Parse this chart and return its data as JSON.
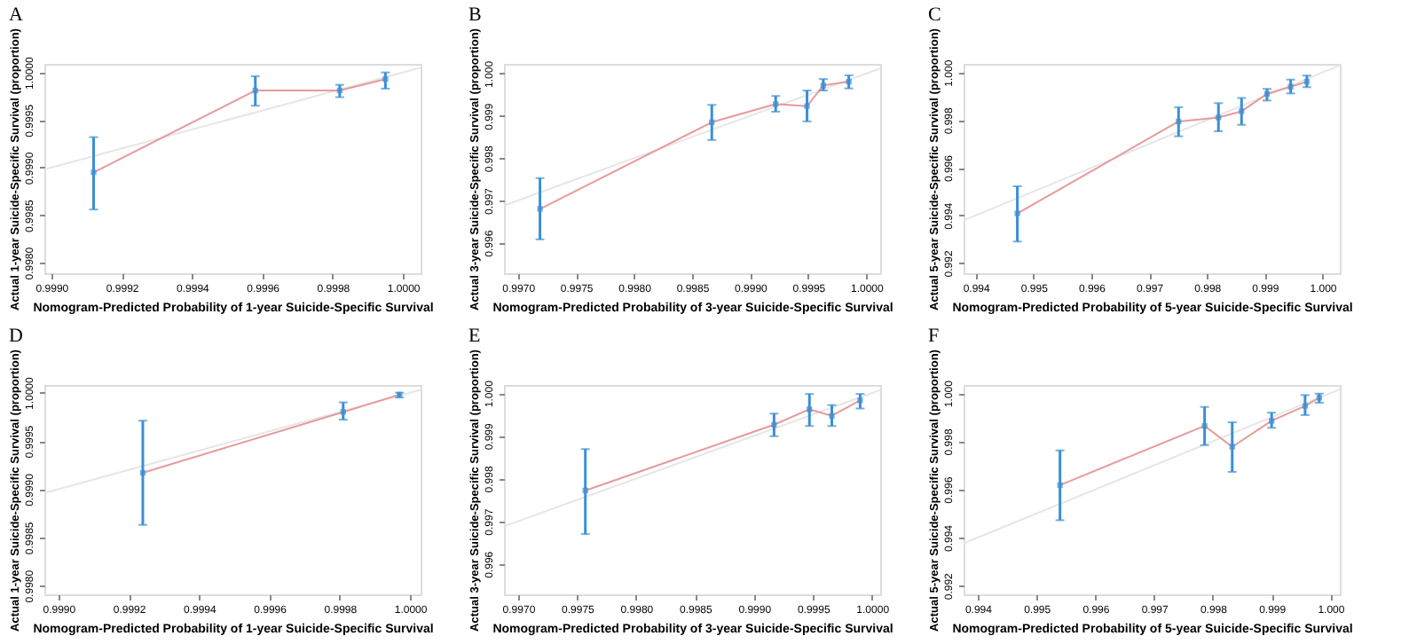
{
  "chart_data": [
    {
      "type": "line",
      "title": "A",
      "xlabel": "Nomogram-Predicted Probability of 1-year Suicide-Specific Survival",
      "ylabel": "Actual 1-year Suicide-Specific Survival (proportion)",
      "xlim": [
        0.99898,
        1.00005
      ],
      "ylim": [
        0.99789,
        1.00009
      ],
      "xticks": [
        {
          "value": 0.999,
          "label": "0.9990"
        },
        0.9992,
        0.9994,
        0.9996,
        0.9998,
        {
          "value": 1.0,
          "label": "1.0000"
        }
      ],
      "yticks": [
        {
          "value": 0.998,
          "label": "0.9980"
        },
        0.9985,
        {
          "value": 0.999,
          "label": "0.9990"
        },
        0.9995,
        {
          "value": 1.0,
          "label": "1.0000"
        }
      ],
      "grid": false,
      "series": [
        {
          "color": "#e6e6e6",
          "x": [
            0.99898,
            1.00005
          ],
          "values": [
            0.99898,
            1.00005
          ]
        },
        {
          "color": "#e89a9a",
          "x": [
            0.99912,
            0.99958,
            0.99982,
            0.99995
          ],
          "values": [
            0.99895,
            0.99981,
            0.99981,
            0.99993
          ]
        },
        {
          "type": "scatter",
          "color": "#3c8fd4",
          "marker": "square",
          "x": [
            0.99912,
            0.99958,
            0.99982,
            0.99995
          ],
          "values": [
            0.99895,
            0.99981,
            0.99981,
            0.99993
          ],
          "errors": [
            [
              0.99856,
              0.99932
            ],
            [
              0.99965,
              0.99996
            ],
            [
              0.99974,
              0.99987
            ],
            [
              0.99983,
              1.0
            ]
          ]
        }
      ]
    },
    {
      "type": "line",
      "title": "B",
      "xlabel": "Nomogram-Predicted Probability of 3-year Suicide-Specific Survival",
      "ylabel": "Actual 3-year Suicide-Specific Survival (proportion)",
      "xlim": [
        0.99688,
        1.00012
      ],
      "ylim": [
        0.99528,
        1.00023
      ],
      "xticks": [
        {
          "value": 0.997,
          "label": "0.9970"
        },
        0.9975,
        {
          "value": 0.998,
          "label": "0.9980"
        },
        0.9985,
        {
          "value": 0.999,
          "label": "0.9990"
        },
        0.9995,
        {
          "value": 1.0,
          "label": "1.0000"
        }
      ],
      "yticks": [
        0.996,
        0.997,
        0.998,
        0.999,
        {
          "value": 1.0,
          "label": "1.000"
        }
      ],
      "grid": false,
      "series": [
        {
          "color": "#e6e6e6",
          "x": [
            0.99688,
            1.00012
          ],
          "values": [
            0.99688,
            1.00012
          ]
        },
        {
          "color": "#e89a9a",
          "x": [
            0.99719,
            0.99867,
            0.99922,
            0.99949,
            0.99963,
            0.99985
          ],
          "values": [
            0.9968,
            0.99885,
            0.99928,
            0.99923,
            0.99972,
            0.99981
          ]
        },
        {
          "type": "scatter",
          "color": "#3c8fd4",
          "marker": "square",
          "x": [
            0.99719,
            0.99867,
            0.99922,
            0.99949,
            0.99963,
            0.99985
          ],
          "values": [
            0.9968,
            0.99885,
            0.99928,
            0.99923,
            0.99972,
            0.99981
          ],
          "errors": [
            [
              0.99608,
              0.99753
            ],
            [
              0.99843,
              0.99926
            ],
            [
              0.9991,
              0.99947
            ],
            [
              0.99887,
              0.9996
            ],
            [
              0.9996,
              0.99987
            ],
            [
              0.99965,
              0.99996
            ]
          ]
        }
      ]
    },
    {
      "type": "line",
      "title": "C",
      "xlabel": "Nomogram-Predicted Probability of 5-year Suicide-Specific Survival",
      "ylabel": "Actual 5-year Suicide-Specific Survival (proportion)",
      "xlim": [
        0.99379,
        1.0003
      ],
      "ylim": [
        0.99157,
        1.00036
      ],
      "xticks": [
        0.994,
        0.995,
        0.996,
        0.997,
        0.998,
        0.999,
        {
          "value": 1.0,
          "label": "1.000"
        }
      ],
      "yticks": [
        0.992,
        0.994,
        0.996,
        0.998,
        {
          "value": 1.0,
          "label": "1.000"
        }
      ],
      "grid": false,
      "series": [
        {
          "color": "#e6e6e6",
          "x": [
            0.99379,
            1.0003
          ],
          "values": [
            0.99379,
            1.0003
          ]
        },
        {
          "color": "#e89a9a",
          "x": [
            0.99472,
            0.99751,
            0.9982,
            0.9986,
            0.99904,
            0.99945,
            0.99973
          ],
          "values": [
            0.99408,
            0.99794,
            0.99811,
            0.99837,
            0.9991,
            0.9994,
            0.99961
          ]
        },
        {
          "type": "scatter",
          "color": "#3c8fd4",
          "marker": "square",
          "x": [
            0.99472,
            0.99751,
            0.9982,
            0.9986,
            0.99904,
            0.99945,
            0.99973
          ],
          "values": [
            0.99408,
            0.99794,
            0.99811,
            0.99837,
            0.9991,
            0.9994,
            0.99961
          ],
          "errors": [
            [
              0.9929,
              0.99522
            ],
            [
              0.99732,
              0.99854
            ],
            [
              0.99753,
              0.99871
            ],
            [
              0.9978,
              0.99893
            ],
            [
              0.99882,
              0.99931
            ],
            [
              0.99912,
              0.9997
            ],
            [
              0.99938,
              0.99987
            ]
          ]
        }
      ]
    },
    {
      "type": "line",
      "title": "D",
      "xlabel": "Nomogram-Predicted Probability of 1-year Suicide-Specific Survival",
      "ylabel": "Actual 1-year Suicide-Specific Survival (proportion)",
      "xlim": [
        0.99896,
        1.00003
      ],
      "ylim": [
        0.99791,
        1.00008
      ],
      "xticks": [
        {
          "value": 0.999,
          "label": "0.9990"
        },
        0.9992,
        0.9994,
        0.9996,
        0.9998,
        {
          "value": 1.0,
          "label": "1.0000"
        }
      ],
      "yticks": [
        {
          "value": 0.998,
          "label": "0.9980"
        },
        0.9985,
        {
          "value": 0.999,
          "label": "0.9990"
        },
        0.9995,
        {
          "value": 1.0,
          "label": "1.0000"
        }
      ],
      "grid": false,
      "series": [
        {
          "color": "#e6e6e6",
          "x": [
            0.99896,
            1.00003
          ],
          "values": [
            0.99896,
            1.00003
          ]
        },
        {
          "color": "#e89a9a",
          "x": [
            0.99924,
            0.99981,
            0.99997
          ],
          "values": [
            0.99917,
            0.9998,
            0.99998
          ]
        },
        {
          "type": "scatter",
          "color": "#3c8fd4",
          "marker": "square",
          "x": [
            0.99924,
            0.99981,
            0.99997
          ],
          "values": [
            0.99917,
            0.9998,
            0.99998
          ],
          "errors": [
            [
              0.99863,
              0.99971
            ],
            [
              0.99972,
              0.9999
            ],
            [
              0.99995,
              1.0
            ]
          ]
        }
      ]
    },
    {
      "type": "line",
      "title": "E",
      "xlabel": "Nomogram-Predicted Probability of 3-year Suicide-Specific Survival",
      "ylabel": "Actual 3-year Suicide-Specific Survival (proportion)",
      "xlim": [
        0.99688,
        1.00007
      ],
      "ylim": [
        0.99529,
        1.00019
      ],
      "xticks": [
        {
          "value": 0.997,
          "label": "0.9970"
        },
        0.9975,
        {
          "value": 0.998,
          "label": "0.9980"
        },
        0.9985,
        {
          "value": 0.999,
          "label": "0.9990"
        },
        0.9995,
        {
          "value": 1.0,
          "label": "1.0000"
        }
      ],
      "yticks": [
        0.996,
        0.997,
        0.998,
        0.999,
        {
          "value": 1.0,
          "label": "1.000"
        }
      ],
      "grid": false,
      "series": [
        {
          "color": "#e6e6e6",
          "x": [
            0.99688,
            1.00007
          ],
          "values": [
            0.99688,
            1.00007
          ]
        },
        {
          "color": "#e89a9a",
          "x": [
            0.99757,
            0.99917,
            0.99947,
            0.99966,
            0.9999
          ],
          "values": [
            0.99772,
            0.99926,
            0.99962,
            0.99947,
            0.99983
          ]
        },
        {
          "type": "scatter",
          "color": "#3c8fd4",
          "marker": "square",
          "x": [
            0.99757,
            0.99917,
            0.99947,
            0.99966,
            0.9999
          ],
          "values": [
            0.99772,
            0.99926,
            0.99962,
            0.99947,
            0.99983
          ],
          "errors": [
            [
              0.9967,
              0.99869
            ],
            [
              0.99899,
              0.99952
            ],
            [
              0.99923,
              0.99998
            ],
            [
              0.99923,
              0.99972
            ],
            [
              0.99964,
              0.99998
            ]
          ]
        }
      ]
    },
    {
      "type": "line",
      "title": "F",
      "xlabel": "Nomogram-Predicted Probability of 5-year Suicide-Specific Survival",
      "ylabel": "Actual 5-year Suicide-Specific Survival (proportion)",
      "xlim": [
        0.99376,
        1.00016
      ],
      "ylim": [
        0.99164,
        1.00034
      ],
      "xticks": [
        0.994,
        0.995,
        0.996,
        0.997,
        0.998,
        0.999,
        {
          "value": 1.0,
          "label": "1.000"
        }
      ],
      "yticks": [
        0.992,
        0.994,
        0.996,
        0.998,
        {
          "value": 1.0,
          "label": "1.000"
        }
      ],
      "grid": false,
      "series": [
        {
          "color": "#e6e6e6",
          "x": [
            0.99376,
            1.00016
          ],
          "values": [
            0.99376,
            1.00016
          ]
        },
        {
          "color": "#e89a9a",
          "x": [
            0.9954,
            0.99786,
            0.99833,
            0.999,
            0.99957,
            0.99981
          ],
          "values": [
            0.99618,
            0.99864,
            0.99777,
            0.99885,
            0.99947,
            0.99981
          ]
        },
        {
          "type": "scatter",
          "color": "#3c8fd4",
          "marker": "square",
          "x": [
            0.9954,
            0.99786,
            0.99833,
            0.999,
            0.99957,
            0.99981
          ],
          "values": [
            0.99618,
            0.99864,
            0.99777,
            0.99885,
            0.99947,
            0.99981
          ],
          "errors": [
            [
              0.99472,
              0.99762
            ],
            [
              0.99784,
              0.99943
            ],
            [
              0.99673,
              0.99879
            ],
            [
              0.99856,
              0.99919
            ],
            [
              0.99909,
              0.99992
            ],
            [
              0.9996,
              0.99998
            ]
          ]
        }
      ]
    }
  ]
}
